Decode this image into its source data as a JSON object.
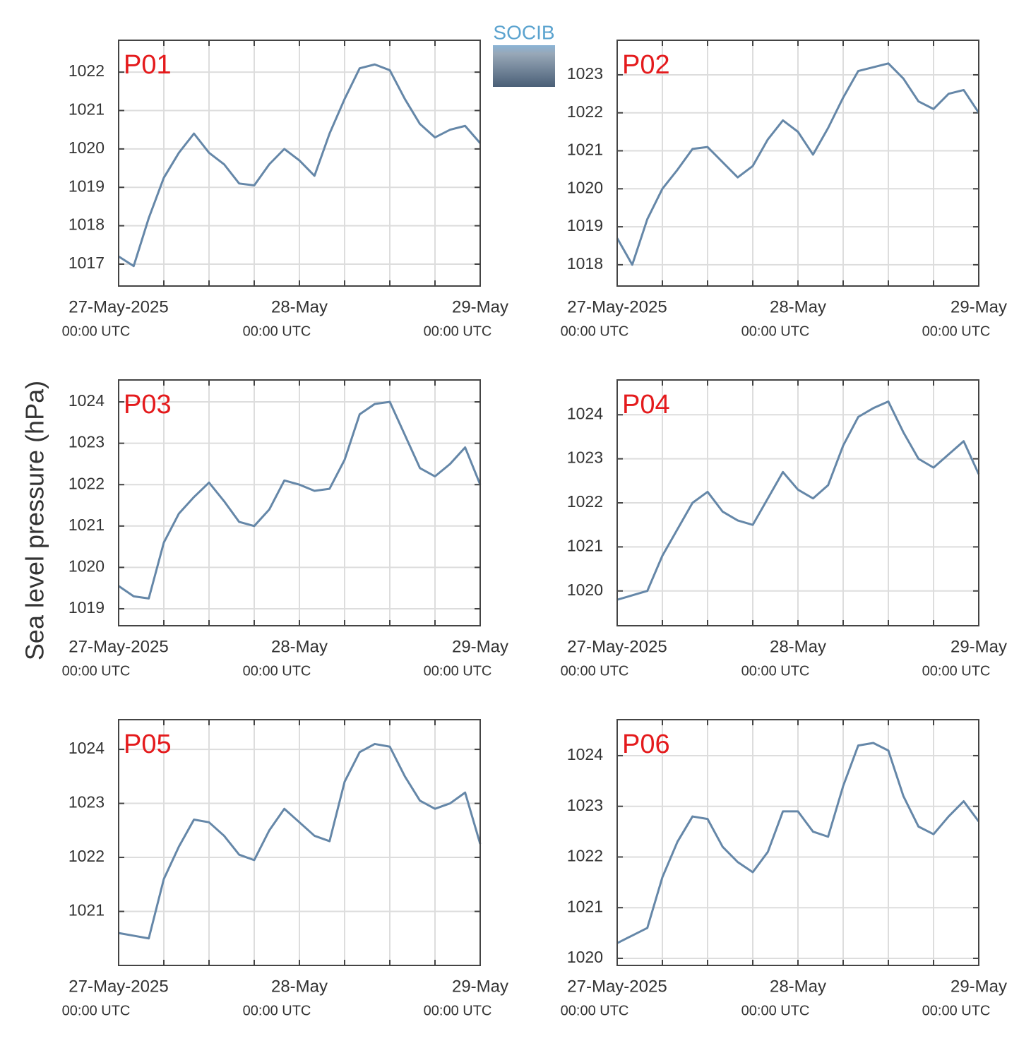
{
  "logo": "SOCIB",
  "ylabel": "Sea level pressure (hPa)",
  "chart_data": [
    {
      "type": "line",
      "title": "P01",
      "color": "#6587a8",
      "x": [
        "2025-05-27T00:00",
        "2025-05-27T02:00",
        "2025-05-27T04:00",
        "2025-05-27T06:00",
        "2025-05-27T08:00",
        "2025-05-27T10:00",
        "2025-05-27T12:00",
        "2025-05-27T14:00",
        "2025-05-27T16:00",
        "2025-05-27T18:00",
        "2025-05-27T20:00",
        "2025-05-27T22:00",
        "2025-05-28T00:00",
        "2025-05-28T02:00",
        "2025-05-28T04:00",
        "2025-05-28T06:00",
        "2025-05-28T08:00",
        "2025-05-28T10:00",
        "2025-05-28T12:00",
        "2025-05-28T14:00",
        "2025-05-28T16:00",
        "2025-05-28T18:00",
        "2025-05-28T20:00",
        "2025-05-28T22:00",
        "2025-05-29T00:00"
      ],
      "values": [
        1017.2,
        1016.95,
        1018.2,
        1019.25,
        1019.9,
        1020.4,
        1019.9,
        1019.6,
        1019.1,
        1019.05,
        1019.6,
        1020.0,
        1019.7,
        1019.3,
        1020.4,
        1021.3,
        1022.1,
        1022.2,
        1022.05,
        1021.3,
        1020.65,
        1020.3,
        1020.5,
        1020.6,
        1020.15
      ],
      "ylim": [
        1016.43,
        1022.83
      ],
      "yticks": [
        1017,
        1018,
        1019,
        1020,
        1021,
        1022
      ],
      "xlim": [
        "2025-05-27T00:00",
        "2025-05-29T00:00"
      ],
      "xticks": [
        {
          "value": "2025-05-27T00:00",
          "label": "27-May-2025",
          "sublabel": "00:00 UTC"
        },
        {
          "value": "2025-05-28T00:00",
          "label": "28-May",
          "sublabel": "00:00 UTC"
        },
        {
          "value": "2025-05-29T00:00",
          "label": "29-May",
          "sublabel": "00:00 UTC"
        }
      ],
      "xminor": [
        "2025-05-27T06:00",
        "2025-05-27T12:00",
        "2025-05-27T18:00",
        "2025-05-28T06:00",
        "2025-05-28T12:00",
        "2025-05-28T18:00"
      ],
      "grid": true
    },
    {
      "type": "line",
      "title": "P02",
      "color": "#6587a8",
      "x": [
        "2025-05-27T00:00",
        "2025-05-27T02:00",
        "2025-05-27T04:00",
        "2025-05-27T06:00",
        "2025-05-27T08:00",
        "2025-05-27T10:00",
        "2025-05-27T12:00",
        "2025-05-27T14:00",
        "2025-05-27T16:00",
        "2025-05-27T18:00",
        "2025-05-27T20:00",
        "2025-05-27T22:00",
        "2025-05-28T00:00",
        "2025-05-28T02:00",
        "2025-05-28T04:00",
        "2025-05-28T06:00",
        "2025-05-28T08:00",
        "2025-05-28T10:00",
        "2025-05-28T12:00",
        "2025-05-28T14:00",
        "2025-05-28T16:00",
        "2025-05-28T18:00",
        "2025-05-28T20:00",
        "2025-05-28T22:00",
        "2025-05-29T00:00"
      ],
      "values": [
        1018.7,
        1018.0,
        1019.2,
        1020.0,
        1020.5,
        1021.05,
        1021.1,
        1020.7,
        1020.3,
        1020.6,
        1021.3,
        1021.8,
        1021.5,
        1020.9,
        1021.6,
        1022.4,
        1023.1,
        1023.2,
        1023.3,
        1022.9,
        1022.3,
        1022.1,
        1022.5,
        1022.6,
        1022.0
      ],
      "ylim": [
        1017.44,
        1023.91
      ],
      "yticks": [
        1018,
        1019,
        1020,
        1021,
        1022,
        1023
      ],
      "xlim": [
        "2025-05-27T00:00",
        "2025-05-29T00:00"
      ],
      "xticks": [
        {
          "value": "2025-05-27T00:00",
          "label": "27-May-2025",
          "sublabel": "00:00 UTC"
        },
        {
          "value": "2025-05-28T00:00",
          "label": "28-May",
          "sublabel": "00:00 UTC"
        },
        {
          "value": "2025-05-29T00:00",
          "label": "29-May",
          "sublabel": "00:00 UTC"
        }
      ],
      "xminor": [
        "2025-05-27T06:00",
        "2025-05-27T12:00",
        "2025-05-27T18:00",
        "2025-05-28T06:00",
        "2025-05-28T12:00",
        "2025-05-28T18:00"
      ],
      "grid": true
    },
    {
      "type": "line",
      "title": "P03",
      "color": "#6587a8",
      "x": [
        "2025-05-27T00:00",
        "2025-05-27T02:00",
        "2025-05-27T04:00",
        "2025-05-27T06:00",
        "2025-05-27T08:00",
        "2025-05-27T10:00",
        "2025-05-27T12:00",
        "2025-05-27T14:00",
        "2025-05-27T16:00",
        "2025-05-27T18:00",
        "2025-05-27T20:00",
        "2025-05-27T22:00",
        "2025-05-28T00:00",
        "2025-05-28T02:00",
        "2025-05-28T04:00",
        "2025-05-28T06:00",
        "2025-05-28T08:00",
        "2025-05-28T10:00",
        "2025-05-28T12:00",
        "2025-05-28T14:00",
        "2025-05-28T16:00",
        "2025-05-28T18:00",
        "2025-05-28T20:00",
        "2025-05-28T22:00",
        "2025-05-29T00:00"
      ],
      "values": [
        1019.55,
        1019.3,
        1019.25,
        1020.6,
        1021.3,
        1021.7,
        1022.05,
        1021.6,
        1021.1,
        1021.0,
        1021.4,
        1022.1,
        1022.0,
        1021.85,
        1021.9,
        1022.6,
        1023.7,
        1023.95,
        1024.0,
        1023.2,
        1022.4,
        1022.2,
        1022.5,
        1022.9,
        1022.0
      ],
      "ylim": [
        1018.59,
        1024.53
      ],
      "yticks": [
        1019,
        1020,
        1021,
        1022,
        1023,
        1024
      ],
      "xlim": [
        "2025-05-27T00:00",
        "2025-05-29T00:00"
      ],
      "xticks": [
        {
          "value": "2025-05-27T00:00",
          "label": "27-May-2025",
          "sublabel": "00:00 UTC"
        },
        {
          "value": "2025-05-28T00:00",
          "label": "28-May",
          "sublabel": "00:00 UTC"
        },
        {
          "value": "2025-05-29T00:00",
          "label": "29-May",
          "sublabel": "00:00 UTC"
        }
      ],
      "xminor": [
        "2025-05-27T06:00",
        "2025-05-27T12:00",
        "2025-05-27T18:00",
        "2025-05-28T06:00",
        "2025-05-28T12:00",
        "2025-05-28T18:00"
      ],
      "grid": true
    },
    {
      "type": "line",
      "title": "P04",
      "color": "#6587a8",
      "x": [
        "2025-05-27T00:00",
        "2025-05-27T02:00",
        "2025-05-27T04:00",
        "2025-05-27T06:00",
        "2025-05-27T08:00",
        "2025-05-27T10:00",
        "2025-05-27T12:00",
        "2025-05-27T14:00",
        "2025-05-27T16:00",
        "2025-05-27T18:00",
        "2025-05-27T20:00",
        "2025-05-27T22:00",
        "2025-05-28T00:00",
        "2025-05-28T02:00",
        "2025-05-28T04:00",
        "2025-05-28T06:00",
        "2025-05-28T08:00",
        "2025-05-28T10:00",
        "2025-05-28T12:00",
        "2025-05-28T14:00",
        "2025-05-28T16:00",
        "2025-05-28T18:00",
        "2025-05-28T20:00",
        "2025-05-28T22:00",
        "2025-05-29T00:00"
      ],
      "values": [
        1019.8,
        1019.9,
        1020.0,
        1020.8,
        1021.4,
        1022.0,
        1022.25,
        1021.8,
        1021.6,
        1021.5,
        1022.1,
        1022.7,
        1022.3,
        1022.1,
        1022.4,
        1023.3,
        1023.95,
        1024.15,
        1024.3,
        1023.6,
        1023.0,
        1022.8,
        1023.1,
        1023.4,
        1022.65
      ],
      "ylim": [
        1019.21,
        1024.79
      ],
      "yticks": [
        1020,
        1021,
        1022,
        1023,
        1024
      ],
      "xlim": [
        "2025-05-27T00:00",
        "2025-05-29T00:00"
      ],
      "xticks": [
        {
          "value": "2025-05-27T00:00",
          "label": "27-May-2025",
          "sublabel": "00:00 UTC"
        },
        {
          "value": "2025-05-28T00:00",
          "label": "28-May",
          "sublabel": "00:00 UTC"
        },
        {
          "value": "2025-05-29T00:00",
          "label": "29-May",
          "sublabel": "00:00 UTC"
        }
      ],
      "xminor": [
        "2025-05-27T06:00",
        "2025-05-27T12:00",
        "2025-05-27T18:00",
        "2025-05-28T06:00",
        "2025-05-28T12:00",
        "2025-05-28T18:00"
      ],
      "grid": true
    },
    {
      "type": "line",
      "title": "P05",
      "color": "#6587a8",
      "x": [
        "2025-05-27T00:00",
        "2025-05-27T02:00",
        "2025-05-27T04:00",
        "2025-05-27T06:00",
        "2025-05-27T08:00",
        "2025-05-27T10:00",
        "2025-05-27T12:00",
        "2025-05-27T14:00",
        "2025-05-27T16:00",
        "2025-05-27T18:00",
        "2025-05-27T20:00",
        "2025-05-27T22:00",
        "2025-05-28T00:00",
        "2025-05-28T02:00",
        "2025-05-28T04:00",
        "2025-05-28T06:00",
        "2025-05-28T08:00",
        "2025-05-28T10:00",
        "2025-05-28T12:00",
        "2025-05-28T14:00",
        "2025-05-28T16:00",
        "2025-05-28T18:00",
        "2025-05-28T20:00",
        "2025-05-28T22:00",
        "2025-05-29T00:00"
      ],
      "values": [
        1020.6,
        1020.55,
        1020.5,
        1021.6,
        1022.2,
        1022.7,
        1022.65,
        1022.4,
        1022.05,
        1021.95,
        1022.5,
        1022.9,
        1022.65,
        1022.4,
        1022.3,
        1023.4,
        1023.95,
        1024.1,
        1024.05,
        1023.5,
        1023.05,
        1022.9,
        1023.0,
        1023.2,
        1022.25
      ],
      "ylim": [
        1020.0,
        1024.55
      ],
      "yticks": [
        1021,
        1022,
        1023,
        1024
      ],
      "xlim": [
        "2025-05-27T00:00",
        "2025-05-29T00:00"
      ],
      "xticks": [
        {
          "value": "2025-05-27T00:00",
          "label": "27-May-2025",
          "sublabel": "00:00 UTC"
        },
        {
          "value": "2025-05-28T00:00",
          "label": "28-May",
          "sublabel": "00:00 UTC"
        },
        {
          "value": "2025-05-29T00:00",
          "label": "29-May",
          "sublabel": "00:00 UTC"
        }
      ],
      "xminor": [
        "2025-05-27T06:00",
        "2025-05-27T12:00",
        "2025-05-27T18:00",
        "2025-05-28T06:00",
        "2025-05-28T12:00",
        "2025-05-28T18:00"
      ],
      "grid": true
    },
    {
      "type": "line",
      "title": "P06",
      "color": "#6587a8",
      "x": [
        "2025-05-27T00:00",
        "2025-05-27T02:00",
        "2025-05-27T04:00",
        "2025-05-27T06:00",
        "2025-05-27T08:00",
        "2025-05-27T10:00",
        "2025-05-27T12:00",
        "2025-05-27T14:00",
        "2025-05-27T16:00",
        "2025-05-27T18:00",
        "2025-05-27T20:00",
        "2025-05-27T22:00",
        "2025-05-28T00:00",
        "2025-05-28T02:00",
        "2025-05-28T04:00",
        "2025-05-28T06:00",
        "2025-05-28T08:00",
        "2025-05-28T10:00",
        "2025-05-28T12:00",
        "2025-05-28T14:00",
        "2025-05-28T16:00",
        "2025-05-28T18:00",
        "2025-05-28T20:00",
        "2025-05-28T22:00",
        "2025-05-29T00:00"
      ],
      "values": [
        1020.3,
        1020.45,
        1020.6,
        1021.6,
        1022.3,
        1022.8,
        1022.75,
        1022.2,
        1021.9,
        1021.7,
        1022.1,
        1022.9,
        1022.9,
        1022.5,
        1022.4,
        1023.4,
        1024.2,
        1024.25,
        1024.1,
        1023.2,
        1022.6,
        1022.45,
        1022.8,
        1023.1,
        1022.7
      ],
      "ylim": [
        1019.86,
        1024.71
      ],
      "yticks": [
        1020,
        1021,
        1022,
        1023,
        1024
      ],
      "xlim": [
        "2025-05-27T00:00",
        "2025-05-29T00:00"
      ],
      "xticks": [
        {
          "value": "2025-05-27T00:00",
          "label": "27-May-2025",
          "sublabel": "00:00 UTC"
        },
        {
          "value": "2025-05-28T00:00",
          "label": "28-May",
          "sublabel": "00:00 UTC"
        },
        {
          "value": "2025-05-29T00:00",
          "label": "29-May",
          "sublabel": "00:00 UTC"
        }
      ],
      "xminor": [
        "2025-05-27T06:00",
        "2025-05-27T12:00",
        "2025-05-27T18:00",
        "2025-05-28T06:00",
        "2025-05-28T12:00",
        "2025-05-28T18:00"
      ],
      "grid": true
    }
  ]
}
